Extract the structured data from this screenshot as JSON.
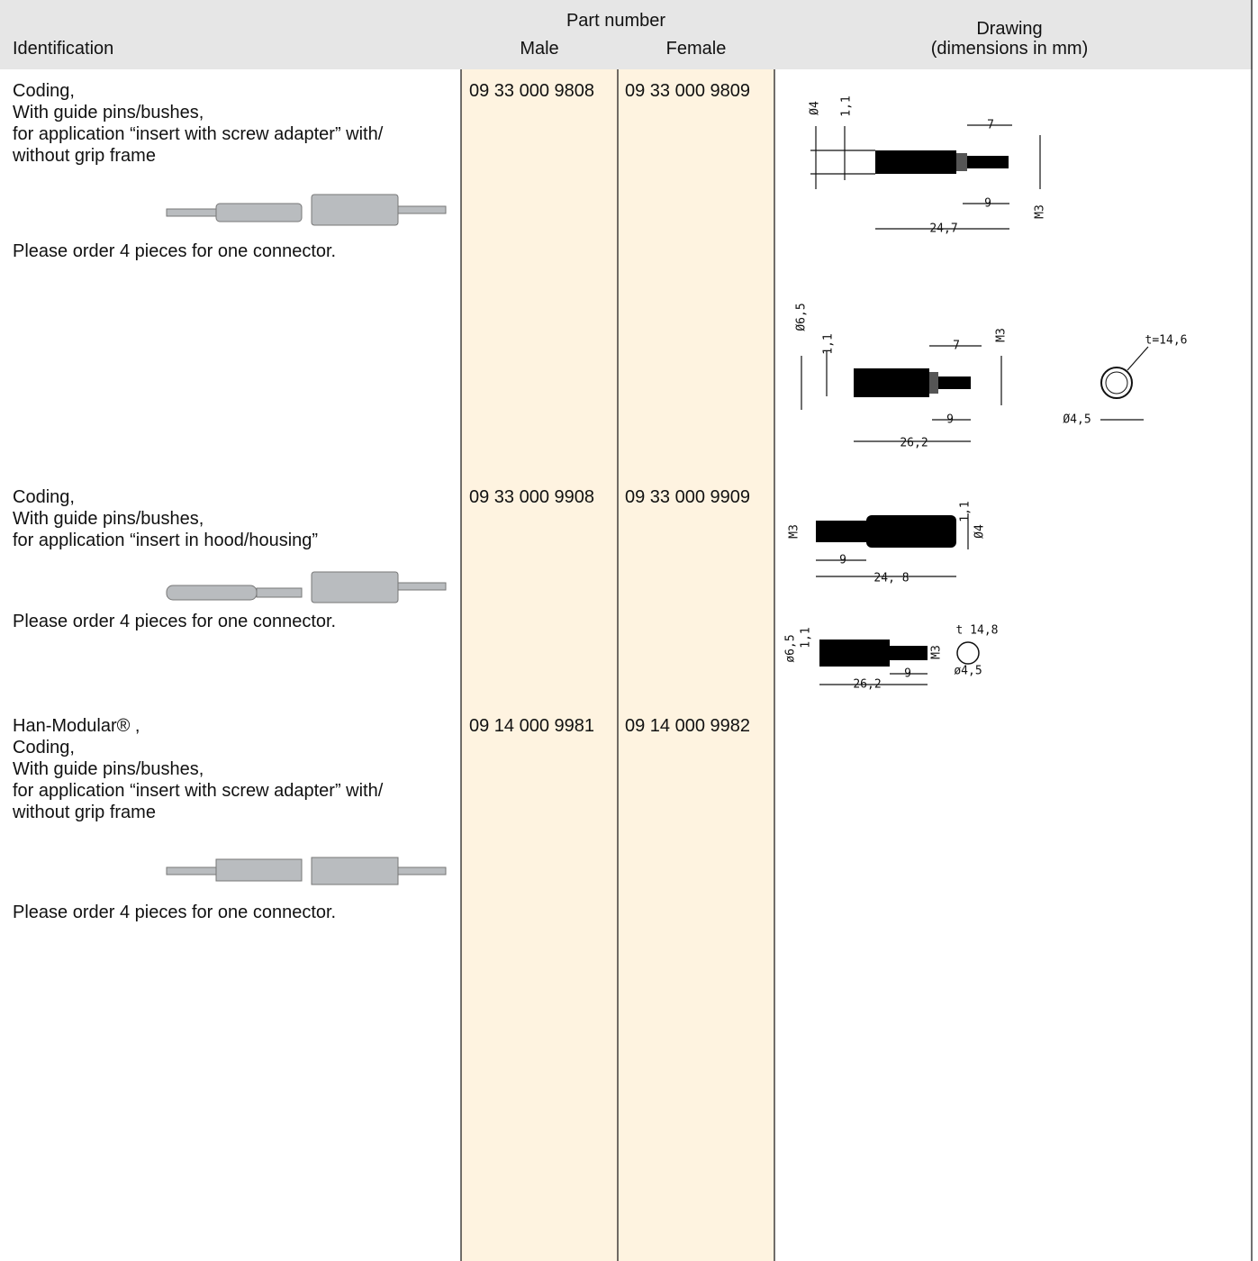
{
  "header": {
    "identification": "Identification",
    "part_number": "Part number",
    "male": "Male",
    "female": "Female",
    "drawing": "Drawing",
    "drawing_units": "(dimensions in mm)"
  },
  "rows": [
    {
      "identification": [
        "Coding,",
        "With guide pins/bushes,",
        "for application “insert with screw adapter” with/",
        "without grip frame"
      ],
      "note": "Please order 4 pieces for one connector.",
      "male": "09 33 000 9808",
      "female": "09 33 000 9809",
      "drawings": [
        {
          "labels": [
            "Ø4",
            "1,1",
            "7",
            "9",
            "24,7",
            "M3"
          ]
        },
        {
          "labels": [
            "Ø6,5",
            "1,1",
            "7",
            "M3",
            "9",
            "26,2",
            "t=14,6",
            "Ø4,5"
          ]
        }
      ]
    },
    {
      "identification": [
        "Coding,",
        "With guide pins/bushes,",
        "for application “insert in hood/housing”"
      ],
      "note": "Please order 4 pieces for one connector.",
      "male": "09 33 000 9908",
      "female": "09 33 000 9909",
      "drawings": [
        {
          "labels": [
            "M3",
            "9",
            "24, 8",
            "1,1",
            "Ø4"
          ]
        },
        {
          "labels": [
            "ø6,5",
            "1,1",
            "t 14,8",
            "M3",
            "9",
            "26,2",
            "ø4,5"
          ]
        }
      ]
    },
    {
      "identification": [
        "Han-Modular® ,",
        "Coding,",
        "With guide pins/bushes,",
        "for application “insert with screw adapter” with/",
        "without grip frame"
      ],
      "note": "Please order 4 pieces for one connector.",
      "male": "09 14 000 9981",
      "female": "09 14 000 9982",
      "drawings": []
    }
  ]
}
